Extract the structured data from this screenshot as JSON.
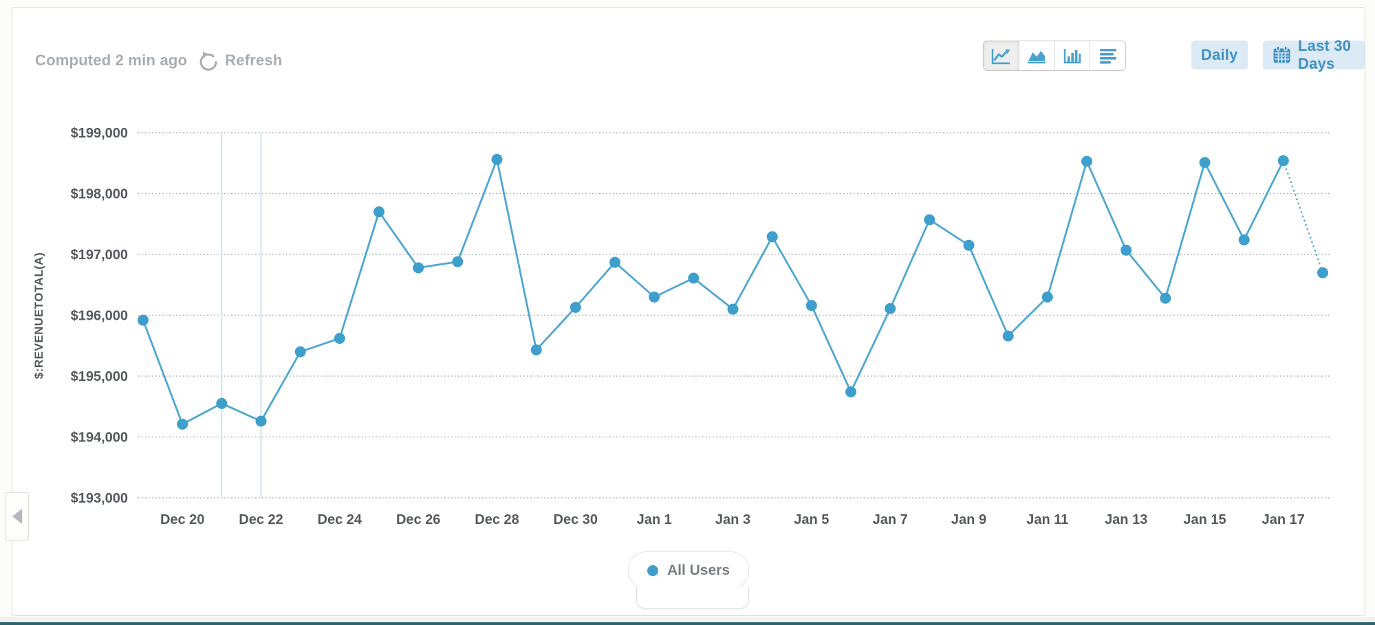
{
  "header": {
    "computed": "Computed 2 min ago",
    "refresh": "Refresh"
  },
  "toolbar": {
    "chart_types": [
      {
        "name": "line-chart",
        "selected": true
      },
      {
        "name": "area-chart",
        "selected": false
      },
      {
        "name": "bar-chart",
        "selected": false
      },
      {
        "name": "table-view",
        "selected": false
      }
    ],
    "granularity": "Daily",
    "date_range": "Last 30 Days"
  },
  "legend": {
    "label": "All Users",
    "dot_color": "#3f9fcc"
  },
  "colors": {
    "accent_blue": "#4aa2ce",
    "button_text_blue": "#4090c2",
    "light_blue_bg": "#dceaf5",
    "muted_text": "#a8adb2",
    "axis_text": "#55595d",
    "grid_line": "#a4a8ac",
    "marker_line": "#cfe2f4",
    "footer_bar": "#30616f"
  },
  "chart_data": {
    "type": "line",
    "title": "",
    "xlabel": "",
    "ylabel": "$:REVENUETOTAL(A)",
    "ylim": [
      193000,
      199000
    ],
    "grid": "dotted-horizontal",
    "legend_position": "bottom-center",
    "x": [
      "Dec 19",
      "Dec 20",
      "Dec 21",
      "Dec 22",
      "Dec 23",
      "Dec 24",
      "Dec 25",
      "Dec 26",
      "Dec 27",
      "Dec 28",
      "Dec 29",
      "Dec 30",
      "Dec 31",
      "Jan 1",
      "Jan 2",
      "Jan 3",
      "Jan 4",
      "Jan 5",
      "Jan 6",
      "Jan 7",
      "Jan 8",
      "Jan 9",
      "Jan 10",
      "Jan 11",
      "Jan 12",
      "Jan 13",
      "Jan 14",
      "Jan 15",
      "Jan 16",
      "Jan 17",
      "Jan 18"
    ],
    "xticks": [
      "Dec 20",
      "Dec 22",
      "Dec 24",
      "Dec 26",
      "Dec 28",
      "Dec 30",
      "Jan 1",
      "Jan 3",
      "Jan 5",
      "Jan 7",
      "Jan 9",
      "Jan 11",
      "Jan 13",
      "Jan 15",
      "Jan 17"
    ],
    "yticks": [
      {
        "value": 199000,
        "label": "$199,000"
      },
      {
        "value": 198000,
        "label": "$198,000"
      },
      {
        "value": 197000,
        "label": "$197,000"
      },
      {
        "value": 196000,
        "label": "$196,000"
      },
      {
        "value": 195000,
        "label": "$195,000"
      },
      {
        "value": 194000,
        "label": "$194,000"
      },
      {
        "value": 193000,
        "label": "$193,000"
      }
    ],
    "marker_dates": [
      "Dec 21",
      "Dec 22"
    ],
    "series": [
      {
        "name": "All Users",
        "color": "#4fa7d1",
        "point_color": "#3f9fcc",
        "last_segment_dotted": true,
        "values": [
          195920,
          194210,
          194550,
          194260,
          195400,
          195620,
          197700,
          196780,
          196880,
          198560,
          195430,
          196130,
          196870,
          196300,
          196610,
          196100,
          197290,
          196160,
          194740,
          196110,
          197570,
          197150,
          195660,
          196300,
          198530,
          197070,
          196280,
          198510,
          197240,
          198540,
          196700
        ]
      }
    ]
  }
}
